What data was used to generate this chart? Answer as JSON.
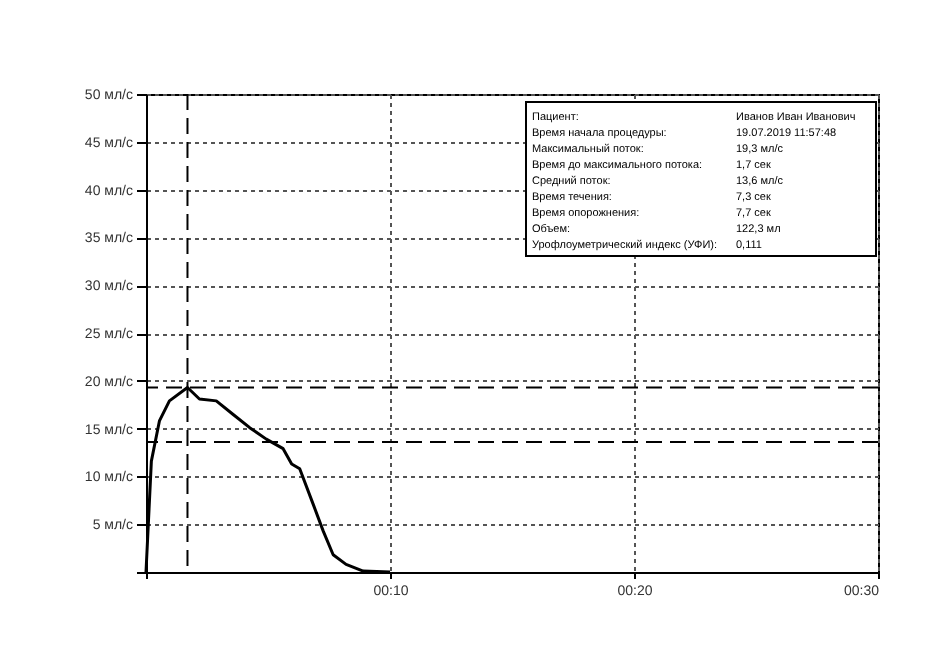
{
  "chart_data": {
    "type": "line",
    "x": [
      0,
      0.22,
      0.55,
      0.96,
      1.7,
      2.19,
      2.88,
      3.56,
      4.25,
      4.93,
      5.62,
      5.97,
      6.3,
      6.85,
      7.26,
      7.67,
      8.2,
      8.9,
      10
    ],
    "series": [
      {
        "color": "#000000",
        "values": [
          0,
          11.6,
          15.8,
          17.9,
          19.3,
          18.1,
          17.9,
          16.5,
          15.1,
          13.9,
          12.9,
          11.3,
          10.8,
          7.1,
          4.3,
          1.8,
          0.8,
          0.1,
          0
        ]
      }
    ],
    "xlim": [
      0,
      30
    ],
    "xticks": [
      {
        "value": 0,
        "label": null
      },
      {
        "value": 10,
        "label": "00:10"
      },
      {
        "value": 20,
        "label": "00:20"
      },
      {
        "value": 30,
        "label": "00:30"
      }
    ],
    "ylim": [
      0,
      50
    ],
    "yticks": [
      {
        "value": 0,
        "label": null
      },
      {
        "value": 5,
        "label": "5 мл/с"
      },
      {
        "value": 10,
        "label": "10 мл/с"
      },
      {
        "value": 15,
        "label": "15 мл/с"
      },
      {
        "value": 20,
        "label": "20 мл/с"
      },
      {
        "value": 25,
        "label": "25 мл/с"
      },
      {
        "value": 30,
        "label": "30 мл/с"
      },
      {
        "value": 35,
        "label": "35 мл/с"
      },
      {
        "value": 40,
        "label": "40 мл/с"
      },
      {
        "value": 45,
        "label": "45 мл/с"
      },
      {
        "value": 50,
        "label": "50 мл/с"
      }
    ],
    "grid": true,
    "line_style": "solid",
    "marker": "none",
    "ref_lines": [
      {
        "axis": "x",
        "value": 1.7,
        "color": "#000000",
        "line_style": "dashed"
      },
      {
        "axis": "y",
        "value": 19.3,
        "color": "#000000",
        "line_style": "dashed"
      },
      {
        "axis": "y",
        "value": 13.6,
        "color": "#000000",
        "line_style": "dashed"
      }
    ],
    "annotations": [
      "Пациент:",
      "Иванов Иван Иванович",
      "Время начала процедуры:",
      "19.07.2019 11:57:48",
      "Максимальный поток:",
      "19,3 мл/с",
      "Время до максимального потока:",
      "1,7 сек",
      "Средний поток:",
      "13,6 мл/с",
      "Время течения:",
      "7,3 сек",
      "Время опорожнения:",
      "7,7 сек",
      "Объем:",
      "122,3 мл",
      "Урофлоуметрический индекс (УФИ):",
      "0,111"
    ]
  }
}
